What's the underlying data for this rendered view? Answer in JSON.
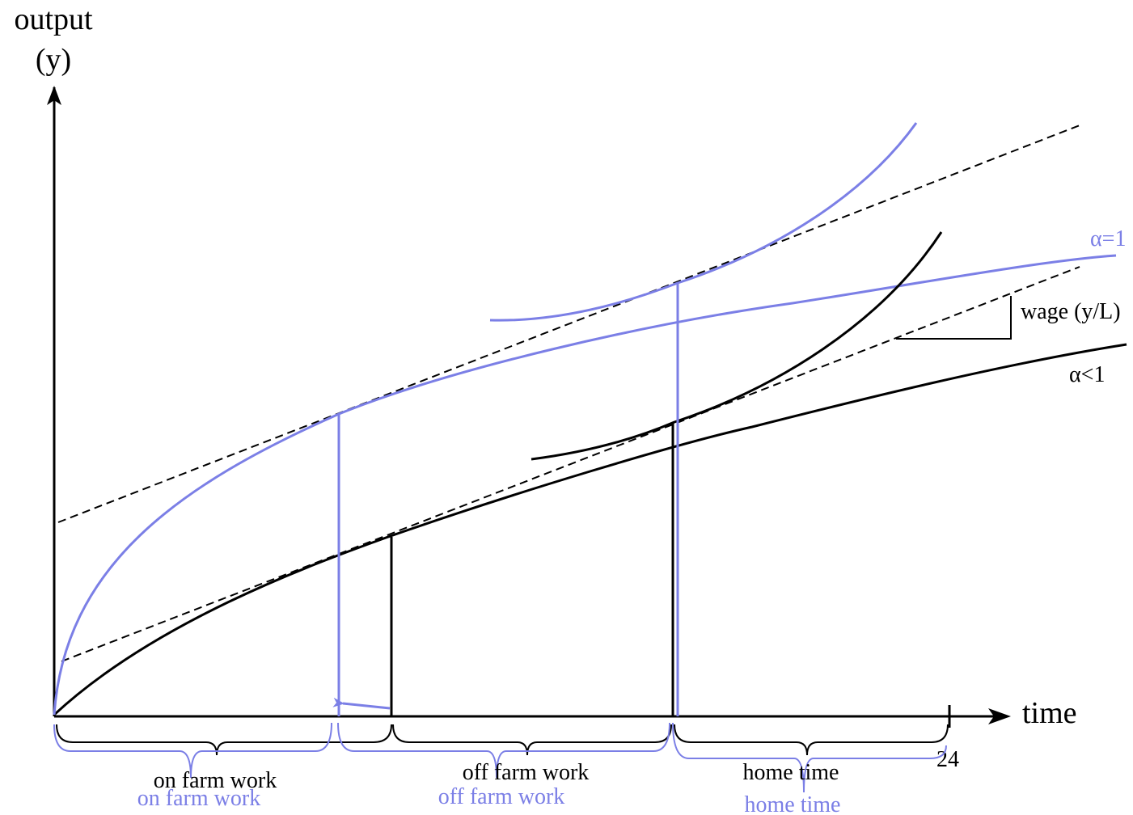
{
  "axes": {
    "y_label_line1": "output",
    "y_label_line2": "(y)",
    "x_label": "time",
    "x_end_tick": "24"
  },
  "curves": {
    "alpha_eq_1": "α=1",
    "alpha_lt_1": "α<1",
    "wage": "wage (y/L)"
  },
  "segments": {
    "black": {
      "on_farm": "on farm work",
      "off_farm": "off farm work",
      "home": "home time"
    },
    "blue": {
      "on_farm": "on farm work",
      "off_farm": "off farm work",
      "home": "home time"
    }
  },
  "colors": {
    "black": "#000000",
    "blue": "#7b7fe6"
  }
}
